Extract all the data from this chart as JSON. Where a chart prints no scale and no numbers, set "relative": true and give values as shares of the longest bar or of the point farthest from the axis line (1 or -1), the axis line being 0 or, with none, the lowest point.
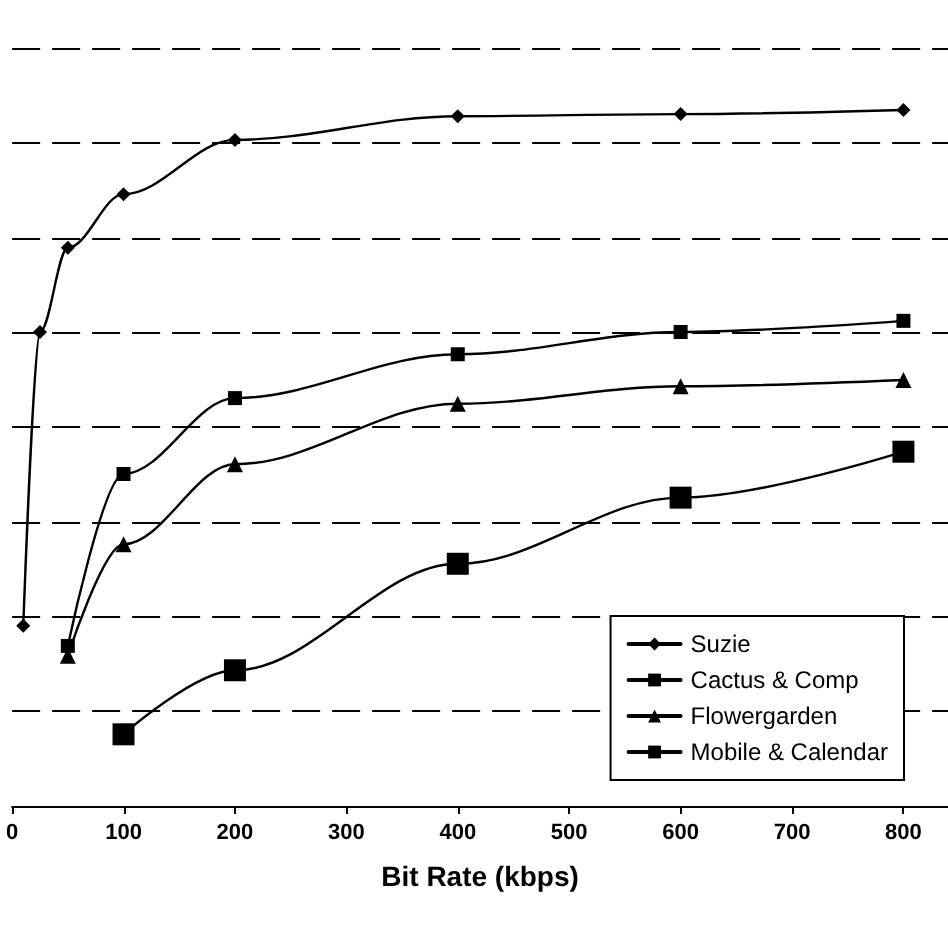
{
  "chart_data": {
    "type": "line",
    "xlabel": "Bit Rate (kbps)",
    "relative": true,
    "grid": "y",
    "legend": "bottom right",
    "line_style": "solid",
    "xlim": [
      0,
      840
    ],
    "xticks": [
      0,
      100,
      200,
      300,
      400,
      500,
      600,
      700,
      800
    ],
    "series": [
      {
        "name": "Suzie",
        "color": "#000000",
        "marker": "diamond",
        "x": [
          10,
          25,
          50,
          100,
          200,
          400,
          600,
          800
        ],
        "values": [
          0.259,
          0.681,
          0.802,
          0.879,
          0.957,
          0.991,
          0.994,
          1
        ]
      },
      {
        "name": "Cactus & Comp",
        "color": "#000000",
        "marker": "square",
        "x": [
          50,
          100,
          200,
          400,
          600,
          800
        ],
        "values": [
          0.23,
          0.477,
          0.586,
          0.649,
          0.681,
          0.697
        ]
      },
      {
        "name": "Flowergarden",
        "color": "#000000",
        "marker": "triangle",
        "x": [
          50,
          100,
          200,
          400,
          600,
          800
        ],
        "values": [
          0.216,
          0.376,
          0.491,
          0.578,
          0.603,
          0.612
        ]
      },
      {
        "name": "Mobile & Calendar",
        "color": "#000000",
        "marker": "square",
        "x": [
          100,
          200,
          400,
          600,
          800
        ],
        "values": [
          0.103,
          0.195,
          0.348,
          0.443,
          0.509
        ]
      }
    ]
  }
}
